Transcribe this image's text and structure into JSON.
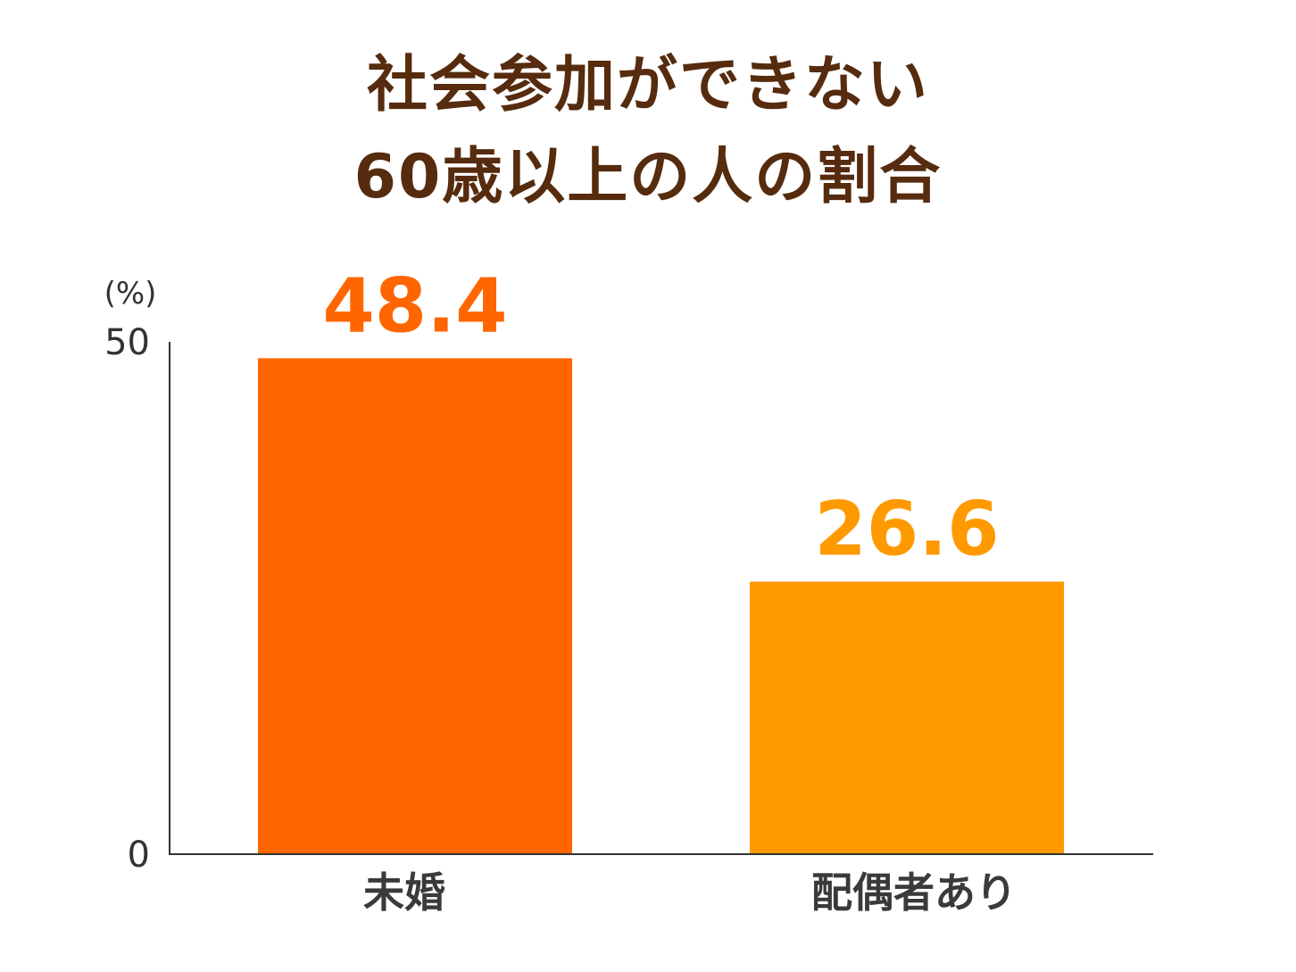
{
  "title_lines": [
    "社会参加ができない",
    "60歳以上の人の割合"
  ],
  "chart_data": {
    "type": "bar",
    "title": "社会参加ができない60歳以上の人の割合",
    "categories": [
      "未婚",
      "配偶者あり"
    ],
    "values": [
      48.4,
      26.6
    ],
    "value_labels": [
      "48.4",
      "26.6"
    ],
    "unit_label": "(%)",
    "ylim": [
      0,
      50
    ],
    "yticks": [
      "0",
      "50"
    ],
    "xlabel": "",
    "ylabel": "",
    "grid": false,
    "legend": "none",
    "colors": [
      "#ff6600",
      "#ff9900"
    ],
    "axis_color": "#333333",
    "tick_label_color": "#333333",
    "category_label_color": "#3a3a3a"
  }
}
